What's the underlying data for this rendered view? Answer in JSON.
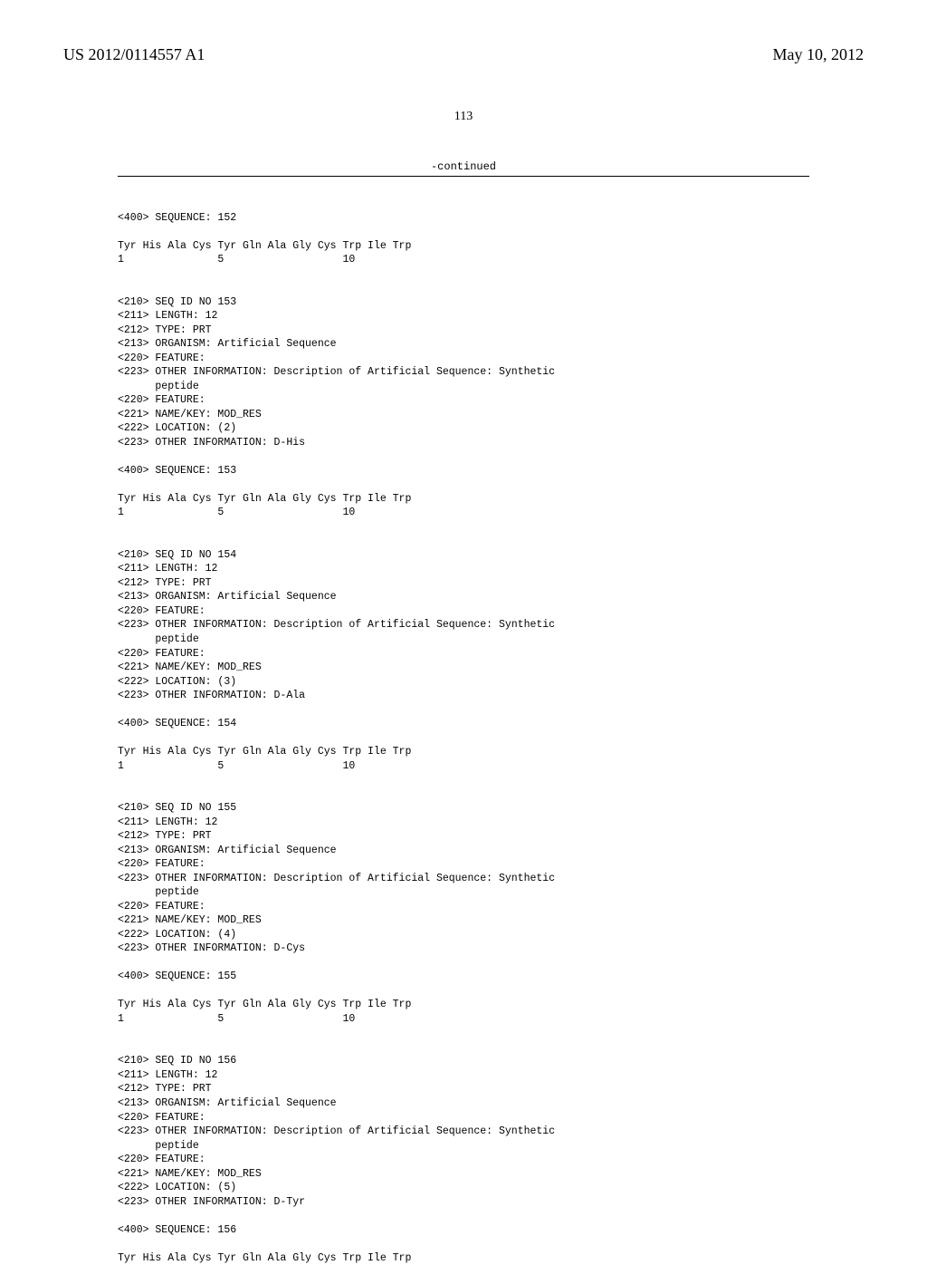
{
  "header": {
    "pub_number": "US 2012/0114557 A1",
    "pub_date": "May 10, 2012",
    "page_number": "113"
  },
  "continued_label": "-continued",
  "sequences": [
    {
      "id": 152,
      "leading_seq_line": "<400> SEQUENCE: 152",
      "headers": [],
      "residues": "Tyr His Ala Cys Tyr Gln Ala Gly Cys Trp Ile Trp",
      "numbers": "1               5                   10"
    },
    {
      "id": 153,
      "headers": [
        "<210> SEQ ID NO 153",
        "<211> LENGTH: 12",
        "<212> TYPE: PRT",
        "<213> ORGANISM: Artificial Sequence",
        "<220> FEATURE:",
        "<223> OTHER INFORMATION: Description of Artificial Sequence: Synthetic",
        "      peptide",
        "<220> FEATURE:",
        "<221> NAME/KEY: MOD_RES",
        "<222> LOCATION: (2)",
        "<223> OTHER INFORMATION: D-His"
      ],
      "seq_line": "<400> SEQUENCE: 153",
      "residues": "Tyr His Ala Cys Tyr Gln Ala Gly Cys Trp Ile Trp",
      "numbers": "1               5                   10"
    },
    {
      "id": 154,
      "headers": [
        "<210> SEQ ID NO 154",
        "<211> LENGTH: 12",
        "<212> TYPE: PRT",
        "<213> ORGANISM: Artificial Sequence",
        "<220> FEATURE:",
        "<223> OTHER INFORMATION: Description of Artificial Sequence: Synthetic",
        "      peptide",
        "<220> FEATURE:",
        "<221> NAME/KEY: MOD_RES",
        "<222> LOCATION: (3)",
        "<223> OTHER INFORMATION: D-Ala"
      ],
      "seq_line": "<400> SEQUENCE: 154",
      "residues": "Tyr His Ala Cys Tyr Gln Ala Gly Cys Trp Ile Trp",
      "numbers": "1               5                   10"
    },
    {
      "id": 155,
      "headers": [
        "<210> SEQ ID NO 155",
        "<211> LENGTH: 12",
        "<212> TYPE: PRT",
        "<213> ORGANISM: Artificial Sequence",
        "<220> FEATURE:",
        "<223> OTHER INFORMATION: Description of Artificial Sequence: Synthetic",
        "      peptide",
        "<220> FEATURE:",
        "<221> NAME/KEY: MOD_RES",
        "<222> LOCATION: (4)",
        "<223> OTHER INFORMATION: D-Cys"
      ],
      "seq_line": "<400> SEQUENCE: 155",
      "residues": "Tyr His Ala Cys Tyr Gln Ala Gly Cys Trp Ile Trp",
      "numbers": "1               5                   10"
    },
    {
      "id": 156,
      "headers": [
        "<210> SEQ ID NO 156",
        "<211> LENGTH: 12",
        "<212> TYPE: PRT",
        "<213> ORGANISM: Artificial Sequence",
        "<220> FEATURE:",
        "<223> OTHER INFORMATION: Description of Artificial Sequence: Synthetic",
        "      peptide",
        "<220> FEATURE:",
        "<221> NAME/KEY: MOD_RES",
        "<222> LOCATION: (5)",
        "<223> OTHER INFORMATION: D-Tyr"
      ],
      "seq_line": "<400> SEQUENCE: 156",
      "residues": "Tyr His Ala Cys Tyr Gln Ala Gly Cys Trp Ile Trp",
      "numbers": null
    }
  ]
}
